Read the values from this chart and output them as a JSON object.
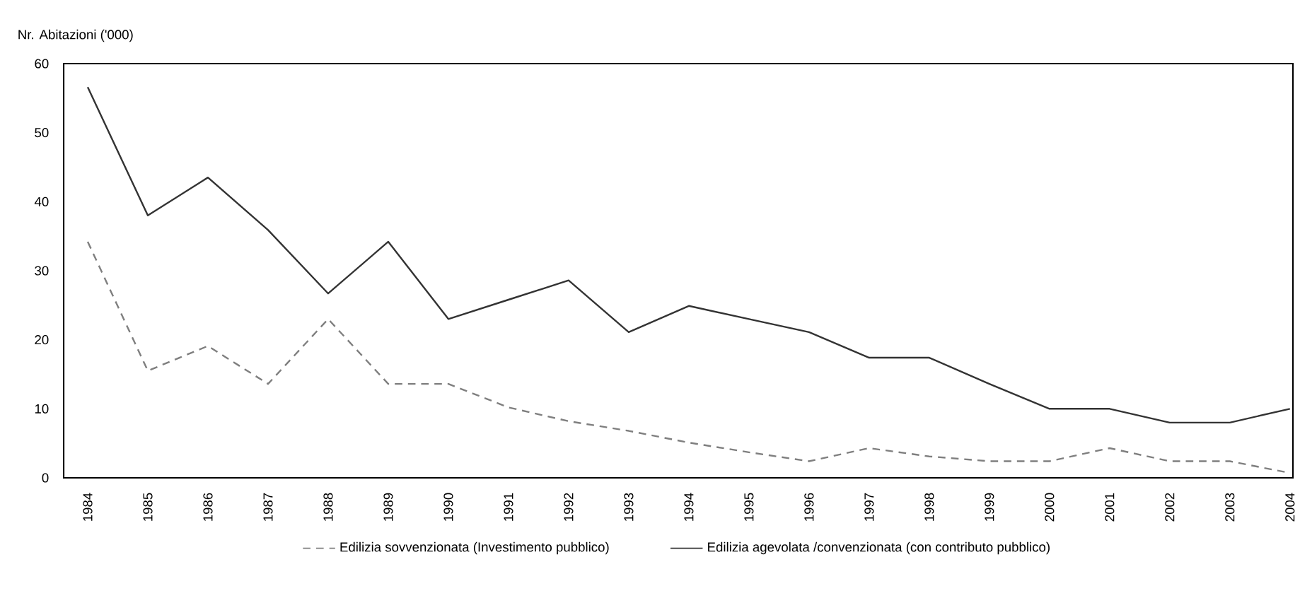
{
  "chart_data": {
    "type": "line",
    "ylabel": "Nr. Abitazioni ('000)",
    "categories": [
      "1984",
      "1985",
      "1986",
      "1987",
      "1988",
      "1989",
      "1990",
      "1991",
      "1992",
      "1993",
      "1994",
      "1995",
      "1996",
      "1997",
      "1998",
      "1999",
      "2000",
      "2001",
      "2002",
      "2003",
      "2004"
    ],
    "series": [
      {
        "name": "Edilizia sovvenzionata (Investimento pubblico)",
        "color": "#7f7f7f",
        "line_style": "dashed",
        "values": [
          34.2,
          15.5,
          19.1,
          13.6,
          23,
          13.6,
          13.6,
          10.2,
          8.2,
          6.8,
          5.1,
          3.7,
          2.4,
          4.3,
          3.1,
          2.4,
          2.4,
          4.3,
          2.4,
          2.4,
          0.7
        ]
      },
      {
        "name": "Edilizia agevolata /convenzionata (con contributo pubblico)",
        "color": "#333333",
        "line_style": "solid",
        "values": [
          56.6,
          38,
          43.5,
          35.9,
          26.7,
          34.2,
          23,
          25.8,
          28.6,
          21.1,
          24.9,
          23,
          21.1,
          17.4,
          17.4,
          13.6,
          10,
          10,
          8,
          8,
          10
        ]
      }
    ],
    "ylim": [
      0,
      60
    ],
    "yticks": [
      0,
      10,
      20,
      30,
      40,
      50,
      60
    ],
    "grid": false,
    "legend": "bottom",
    "marker": "none"
  }
}
